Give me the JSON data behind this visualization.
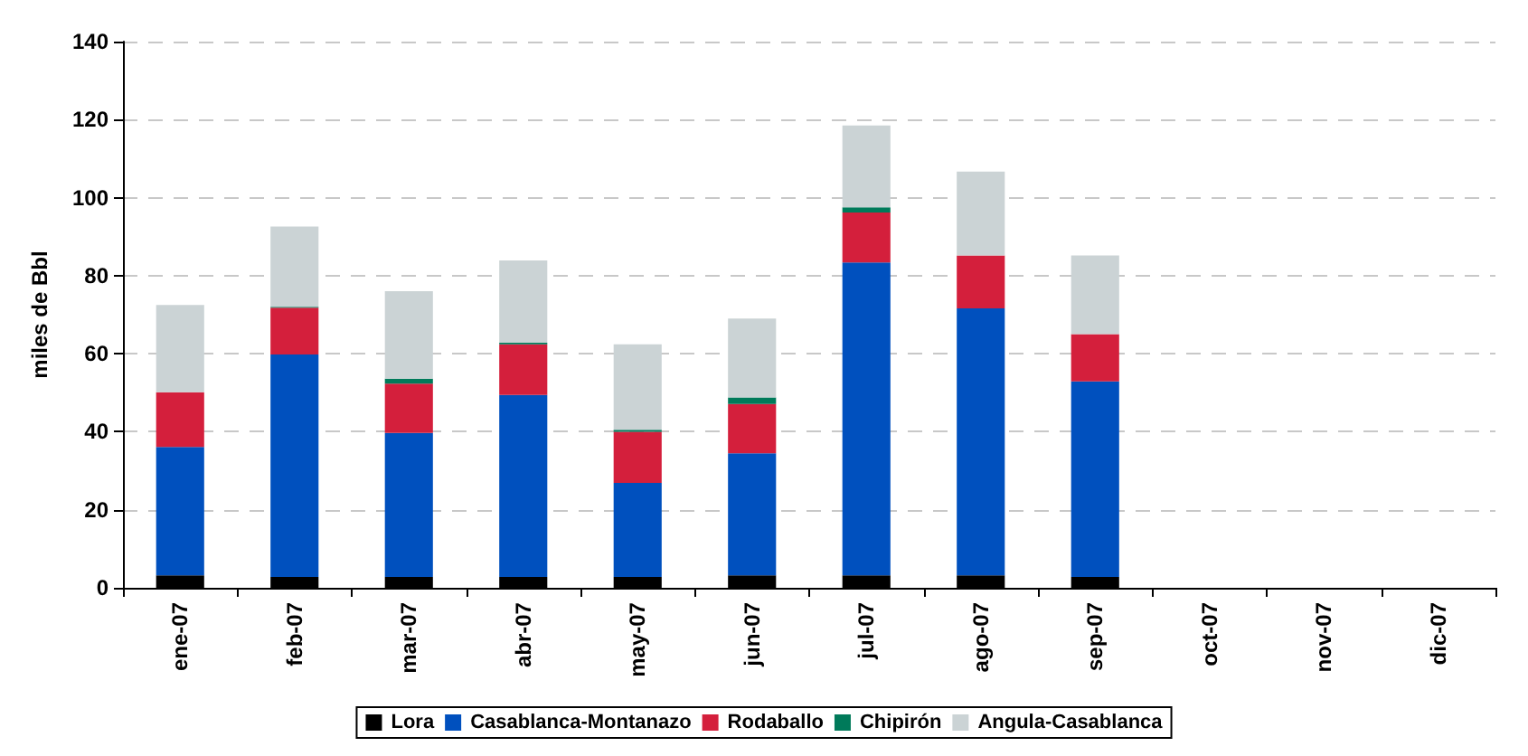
{
  "chart_data": {
    "type": "bar",
    "stacked": true,
    "ylabel": "miles de Bbl",
    "categories": [
      "ene-07",
      "feb-07",
      "mar-07",
      "abr-07",
      "may-07",
      "jun-07",
      "jul-07",
      "ago-07",
      "sep-07",
      "oct-07",
      "nov-07",
      "dic-07"
    ],
    "series": [
      {
        "name": "Lora",
        "color": "#000000",
        "values": [
          3.2,
          2.8,
          2.8,
          2.8,
          2.8,
          3.2,
          3.2,
          3.2,
          2.8,
          null,
          null,
          null
        ]
      },
      {
        "name": "Casablanca-Montanazo",
        "color": "#0050be",
        "values": [
          32.9,
          57.0,
          36.9,
          46.6,
          24.1,
          31.3,
          80.2,
          68.4,
          50.1,
          null,
          null,
          null
        ]
      },
      {
        "name": "Rodaballo",
        "color": "#d41f3c",
        "values": [
          14.0,
          12.0,
          12.6,
          13.0,
          13.1,
          12.6,
          12.8,
          13.6,
          12.1,
          null,
          null,
          null
        ]
      },
      {
        "name": "Chipirón",
        "color": "#007a5a",
        "values": [
          0,
          0.2,
          1.3,
          0.4,
          0.5,
          1.7,
          1.3,
          0,
          0,
          null,
          null,
          null
        ]
      },
      {
        "name": "Angula-Casablanca",
        "color": "#cbd3d5",
        "values": [
          22.4,
          20.6,
          22.4,
          21.1,
          21.9,
          20.2,
          21.0,
          21.5,
          20.2,
          null,
          null,
          null
        ]
      }
    ],
    "ylim": [
      0,
      140
    ],
    "yticks": [
      0,
      20,
      40,
      60,
      80,
      100,
      120,
      140
    ],
    "grid": "y",
    "legend": "bottom"
  }
}
